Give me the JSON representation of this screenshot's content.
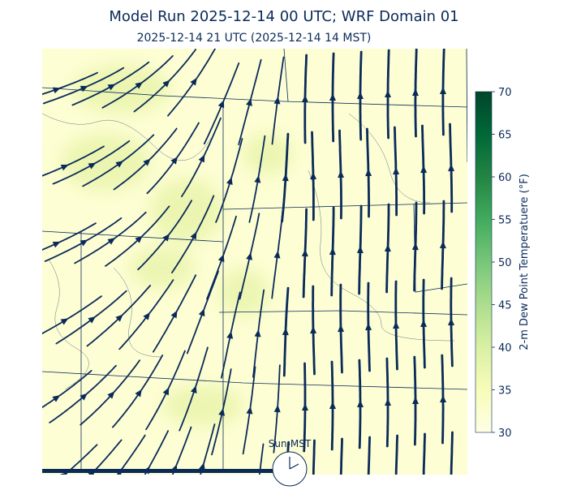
{
  "title": "Model Run 2025-12-14 00 UTC; WRF Domain 01",
  "subtitle": "2025-12-14 21 UTC  (2025-12-14 14 MST)",
  "colorbar": {
    "label": "2-m Dew Point Temperatuere (°F)",
    "range": [
      30,
      70
    ],
    "ticks": [
      30,
      35,
      40,
      45,
      50,
      55,
      60,
      65,
      70
    ],
    "colors": [
      "#ffffe5",
      "#f7fcb9",
      "#d9f0a3",
      "#addd8e",
      "#78c679",
      "#41ab5d",
      "#238443",
      "#006837",
      "#004529"
    ]
  },
  "clock": {
    "label": "Sun-MST"
  }
}
